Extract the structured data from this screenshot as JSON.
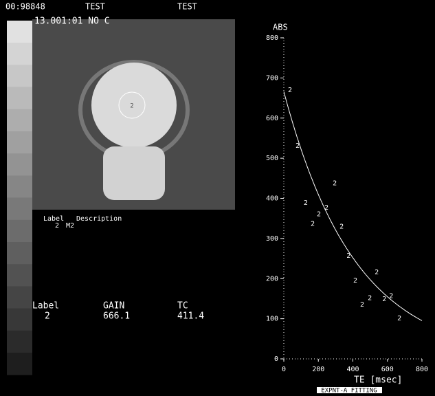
{
  "header": {
    "id": "00:98848",
    "name": "TEST",
    "name2": "TEST",
    "series": "13.001:01 NO C"
  },
  "legend": {
    "label_heading": "Label",
    "description_heading": "Description",
    "label": "2",
    "description": "M2"
  },
  "result": {
    "label_heading": "Label",
    "gain_heading": "GAIN",
    "tc_heading": "TC",
    "label": "2",
    "gain": 666.1,
    "tc": 411.4
  },
  "footer": "EXPNT-A FITTING",
  "chart_data": {
    "type": "scatter",
    "y_label": "ABS",
    "x_label": "TE  [msec]",
    "marker": "2",
    "x": [
      36,
      80,
      127,
      167,
      203,
      247,
      295,
      335,
      375,
      414,
      454,
      498,
      538,
      582,
      622,
      669
    ],
    "values": [
      670,
      531,
      389,
      337,
      361,
      377,
      438,
      330,
      257,
      195,
      135,
      152,
      216,
      149,
      157,
      101
    ],
    "xlim": [
      0,
      800
    ],
    "ylim": [
      0,
      800
    ],
    "xticks": [
      0,
      200,
      400,
      600,
      800
    ],
    "yticks": [
      0,
      100,
      200,
      300,
      400,
      500,
      600,
      700,
      800
    ]
  }
}
